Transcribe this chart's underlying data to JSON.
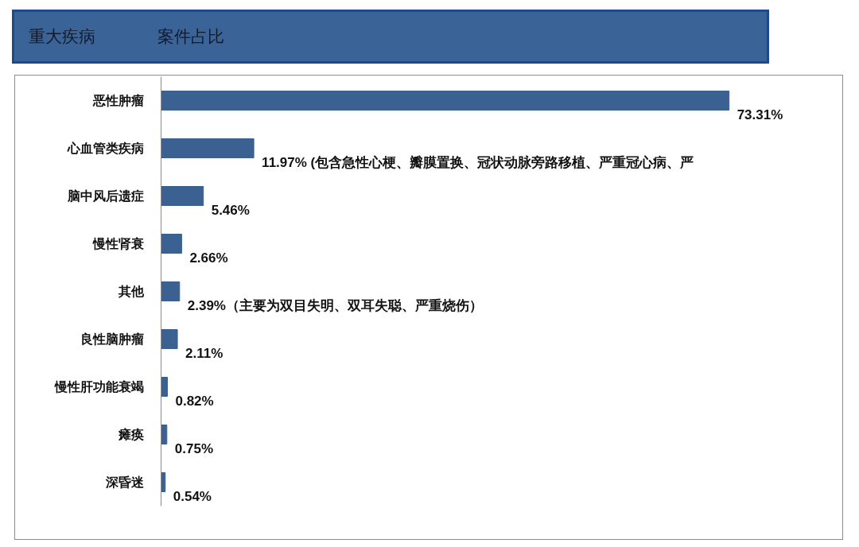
{
  "chart_data": {
    "type": "bar",
    "orientation": "horizontal",
    "title": "重大疾病",
    "subtitle": "案件占比",
    "categories": [
      "恶性肿瘤",
      "心血管类疾病",
      "脑中风后遗症",
      "慢性肾衰",
      "其他",
      "良性脑肿瘤",
      "慢性肝功能衰竭",
      "瘫痪",
      "深昏迷"
    ],
    "values": [
      73.31,
      11.97,
      5.46,
      2.66,
      2.39,
      2.11,
      0.82,
      0.75,
      0.54
    ],
    "color": "#3b6193",
    "value_labels": [
      "73.31%",
      "11.97% (包含急性心梗、瓣膜置换、冠状动脉旁路移植、严重冠心病、严",
      "5.46%",
      "2.66%",
      "2.39%（主要为双目失明、双耳失聪、严重烧伤）",
      "2.11%",
      "0.82%",
      "0.75%",
      "0.54%"
    ]
  }
}
